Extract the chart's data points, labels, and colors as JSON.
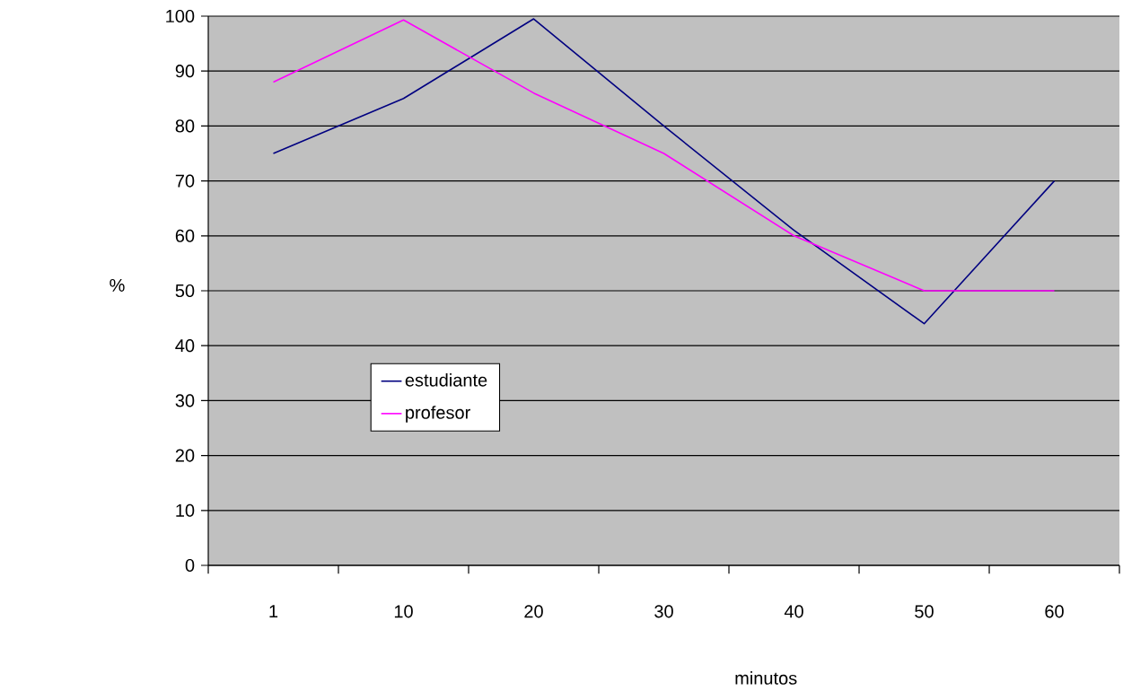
{
  "chart_data": {
    "type": "line",
    "xlabel": "minutos",
    "ylabel": "%",
    "categories": [
      "1",
      "10",
      "20",
      "30",
      "40",
      "50",
      "60"
    ],
    "series": [
      {
        "name": "estudiante",
        "color": "#000080",
        "values": [
          75,
          85,
          99.5,
          80,
          61,
          44,
          70
        ]
      },
      {
        "name": "profesor",
        "color": "#ff00ff",
        "values": [
          88,
          99.3,
          86,
          75,
          60,
          50,
          50
        ]
      }
    ],
    "ylim": [
      0,
      100
    ],
    "yticks": [
      0,
      10,
      20,
      30,
      40,
      50,
      60,
      70,
      80,
      90,
      100
    ],
    "grid": "y",
    "legend": "left",
    "marker": "none",
    "line_style": "solid"
  }
}
